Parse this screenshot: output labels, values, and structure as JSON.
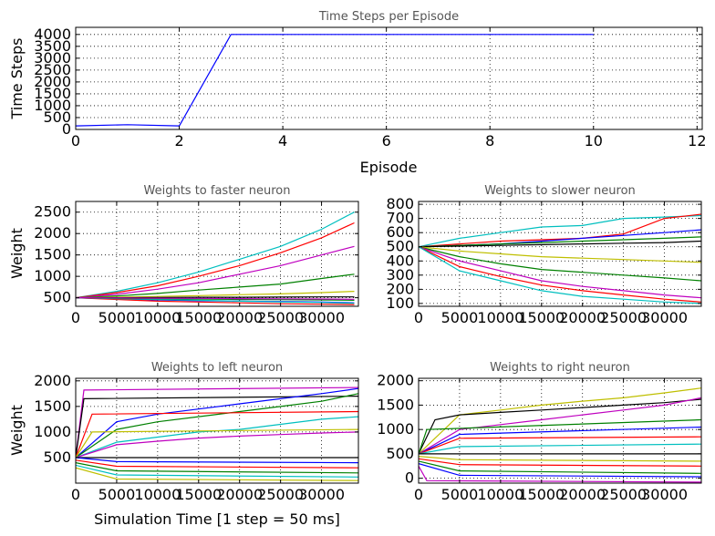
{
  "chart_data": [
    {
      "type": "line",
      "title": "Time Steps per Episode",
      "xlabel": "Episode",
      "ylabel": "Time Steps",
      "xlim": [
        0,
        12.1
      ],
      "ylim": [
        0,
        4300
      ],
      "xticks": [
        0,
        2,
        4,
        6,
        8,
        10,
        12
      ],
      "yticks": [
        0,
        500,
        1000,
        1500,
        2000,
        2500,
        3000,
        3500,
        4000
      ],
      "grid": true,
      "series": [
        {
          "color": "#0000ff",
          "x": [
            0,
            1,
            2,
            3,
            4,
            5,
            6,
            7,
            8,
            9,
            10
          ],
          "y": [
            150,
            200,
            150,
            4000,
            4000,
            4000,
            4000,
            4000,
            4000,
            4000,
            4000
          ]
        }
      ]
    },
    {
      "type": "line",
      "title": "Weights to faster neuron",
      "xlabel": "",
      "ylabel": "Weight",
      "xlim": [
        0,
        34500
      ],
      "ylim": [
        300,
        2750
      ],
      "xticks": [
        0,
        5000,
        10000,
        15000,
        20000,
        25000,
        30000
      ],
      "yticks": [
        500,
        1000,
        1500,
        2000,
        2500
      ],
      "grid": true,
      "series": [
        {
          "color": "#00bfbf",
          "x": [
            0,
            5000,
            10000,
            15000,
            20000,
            25000,
            30000,
            34000
          ],
          "y": [
            500,
            650,
            850,
            1100,
            1400,
            1700,
            2100,
            2500
          ]
        },
        {
          "color": "#ff0000",
          "x": [
            0,
            5000,
            10000,
            15000,
            20000,
            25000,
            30000,
            34000
          ],
          "y": [
            500,
            620,
            780,
            1000,
            1250,
            1550,
            1900,
            2250
          ]
        },
        {
          "color": "#bf00bf",
          "x": [
            0,
            5000,
            10000,
            15000,
            20000,
            25000,
            30000,
            34000
          ],
          "y": [
            500,
            580,
            700,
            850,
            1050,
            1250,
            1500,
            1700
          ]
        },
        {
          "color": "#008000",
          "x": [
            0,
            5000,
            10000,
            15000,
            20000,
            25000,
            30000,
            34000
          ],
          "y": [
            500,
            540,
            600,
            680,
            750,
            820,
            950,
            1050
          ]
        },
        {
          "color": "#bfbf00",
          "x": [
            0,
            5000,
            10000,
            15000,
            20000,
            25000,
            30000,
            34000
          ],
          "y": [
            500,
            510,
            530,
            550,
            570,
            590,
            620,
            650
          ]
        },
        {
          "color": "#000000",
          "x": [
            0,
            5000,
            10000,
            15000,
            20000,
            25000,
            30000,
            34000
          ],
          "y": [
            500,
            500,
            505,
            510,
            510,
            515,
            520,
            520
          ]
        },
        {
          "color": "#0000ff",
          "x": [
            0,
            5000,
            10000,
            15000,
            20000,
            25000,
            30000,
            34000
          ],
          "y": [
            500,
            470,
            450,
            430,
            420,
            410,
            400,
            380
          ]
        },
        {
          "color": "#ff0000",
          "x": [
            0,
            5000,
            10000,
            15000,
            20000,
            25000,
            30000,
            34000
          ],
          "y": [
            500,
            460,
            420,
            400,
            380,
            360,
            350,
            340
          ]
        },
        {
          "color": "#00bfbf",
          "x": [
            0,
            5000,
            10000,
            15000,
            20000,
            25000,
            30000,
            34000
          ],
          "y": [
            500,
            480,
            460,
            440,
            420,
            400,
            390,
            370
          ]
        },
        {
          "color": "#008000",
          "x": [
            0,
            5000,
            10000,
            15000,
            20000,
            25000,
            30000,
            34000
          ],
          "y": [
            500,
            490,
            480,
            470,
            460,
            455,
            450,
            440
          ]
        },
        {
          "color": "#bf00bf",
          "x": [
            0,
            5000,
            10000,
            15000,
            20000,
            25000,
            30000,
            34000
          ],
          "y": [
            500,
            495,
            490,
            485,
            480,
            475,
            470,
            465
          ]
        }
      ]
    },
    {
      "type": "line",
      "title": "Weights to slower neuron",
      "xlabel": "",
      "ylabel": "",
      "xlim": [
        0,
        34500
      ],
      "ylim": [
        80,
        820
      ],
      "xticks": [
        0,
        5000,
        10000,
        15000,
        20000,
        25000,
        30000
      ],
      "yticks": [
        100,
        200,
        300,
        400,
        500,
        600,
        700,
        800
      ],
      "grid": true,
      "series": [
        {
          "color": "#00bfbf",
          "x": [
            0,
            5000,
            10000,
            15000,
            20000,
            25000,
            30000,
            34500
          ],
          "y": [
            500,
            560,
            600,
            640,
            650,
            700,
            710,
            720
          ]
        },
        {
          "color": "#ff0000",
          "x": [
            0,
            5000,
            10000,
            15000,
            20000,
            25000,
            30000,
            34500
          ],
          "y": [
            500,
            520,
            540,
            550,
            560,
            590,
            700,
            730
          ]
        },
        {
          "color": "#0000ff",
          "x": [
            0,
            5000,
            10000,
            15000,
            20000,
            25000,
            30000,
            34500
          ],
          "y": [
            500,
            510,
            520,
            540,
            560,
            580,
            600,
            620
          ]
        },
        {
          "color": "#008000",
          "x": [
            0,
            5000,
            10000,
            15000,
            20000,
            25000,
            30000,
            34500
          ],
          "y": [
            500,
            510,
            520,
            530,
            540,
            550,
            560,
            570
          ]
        },
        {
          "color": "#000000",
          "x": [
            0,
            5000,
            10000,
            15000,
            20000,
            25000,
            30000,
            34500
          ],
          "y": [
            500,
            505,
            510,
            515,
            520,
            525,
            530,
            540
          ]
        },
        {
          "color": "#bfbf00",
          "x": [
            0,
            5000,
            10000,
            15000,
            20000,
            25000,
            30000,
            34500
          ],
          "y": [
            500,
            470,
            450,
            430,
            420,
            410,
            400,
            390
          ]
        },
        {
          "color": "#008000",
          "x": [
            0,
            5000,
            10000,
            15000,
            20000,
            25000,
            30000,
            34500
          ],
          "y": [
            500,
            430,
            380,
            340,
            320,
            300,
            280,
            260
          ]
        },
        {
          "color": "#bf00bf",
          "x": [
            0,
            5000,
            10000,
            15000,
            20000,
            25000,
            30000,
            34500
          ],
          "y": [
            500,
            400,
            330,
            260,
            220,
            190,
            160,
            140
          ]
        },
        {
          "color": "#ff0000",
          "x": [
            0,
            5000,
            10000,
            15000,
            20000,
            25000,
            30000,
            34500
          ],
          "y": [
            500,
            360,
            290,
            230,
            190,
            160,
            130,
            110
          ]
        },
        {
          "color": "#00bfbf",
          "x": [
            0,
            5000,
            10000,
            15000,
            20000,
            25000,
            30000,
            34500
          ],
          "y": [
            500,
            330,
            260,
            190,
            150,
            130,
            110,
            100
          ]
        }
      ]
    },
    {
      "type": "line",
      "title": "Weights to left neuron",
      "xlabel": "Simulation Time [1 step = 50 ms]",
      "ylabel": "Weight",
      "xlim": [
        0,
        34500
      ],
      "ylim": [
        0,
        2050
      ],
      "xticks": [
        0,
        5000,
        10000,
        15000,
        20000,
        25000,
        30000
      ],
      "yticks": [
        500,
        1000,
        1500,
        2000
      ],
      "grid": true,
      "series": [
        {
          "color": "#bf00bf",
          "x": [
            0,
            1000,
            34500
          ],
          "y": [
            500,
            1820,
            1870
          ]
        },
        {
          "color": "#000000",
          "x": [
            0,
            1000,
            34500
          ],
          "y": [
            500,
            1650,
            1700
          ]
        },
        {
          "color": "#0000ff",
          "x": [
            0,
            5000,
            10000,
            15000,
            20000,
            25000,
            30000,
            34500
          ],
          "y": [
            500,
            1200,
            1350,
            1450,
            1550,
            1650,
            1750,
            1850
          ]
        },
        {
          "color": "#008000",
          "x": [
            0,
            5000,
            10000,
            15000,
            20000,
            25000,
            30000,
            34500
          ],
          "y": [
            500,
            1050,
            1200,
            1300,
            1400,
            1500,
            1600,
            1750
          ]
        },
        {
          "color": "#ff0000",
          "x": [
            0,
            2000,
            34500
          ],
          "y": [
            500,
            1350,
            1400
          ]
        },
        {
          "color": "#00bfbf",
          "x": [
            0,
            5000,
            10000,
            15000,
            20000,
            25000,
            30000,
            34500
          ],
          "y": [
            500,
            800,
            900,
            1000,
            1050,
            1150,
            1250,
            1300
          ]
        },
        {
          "color": "#bf00bf",
          "x": [
            0,
            5000,
            10000,
            15000,
            20000,
            25000,
            30000,
            34500
          ],
          "y": [
            500,
            750,
            820,
            880,
            920,
            950,
            980,
            1000
          ]
        },
        {
          "color": "#bfbf00",
          "x": [
            0,
            2000,
            34500
          ],
          "y": [
            500,
            1000,
            1050
          ]
        },
        {
          "color": "#000000",
          "x": [
            0,
            34500
          ],
          "y": [
            500,
            500
          ]
        },
        {
          "color": "#0000ff",
          "x": [
            0,
            5000,
            34500
          ],
          "y": [
            500,
            420,
            400
          ]
        },
        {
          "color": "#ff0000",
          "x": [
            0,
            5000,
            34500
          ],
          "y": [
            450,
            330,
            300
          ]
        },
        {
          "color": "#008000",
          "x": [
            0,
            5000,
            34500
          ],
          "y": [
            400,
            240,
            200
          ]
        },
        {
          "color": "#00bfbf",
          "x": [
            0,
            5000,
            34500
          ],
          "y": [
            350,
            160,
            120
          ]
        },
        {
          "color": "#bfbf00",
          "x": [
            0,
            5000,
            34500
          ],
          "y": [
            300,
            80,
            50
          ]
        }
      ]
    },
    {
      "type": "line",
      "title": "Weights to right neuron",
      "xlabel": "",
      "ylabel": "",
      "xlim": [
        0,
        34500
      ],
      "ylim": [
        -100,
        2050
      ],
      "xticks": [
        0,
        5000,
        10000,
        15000,
        20000,
        25000,
        30000
      ],
      "yticks": [
        0,
        500,
        1000,
        1500,
        2000
      ],
      "grid": true,
      "series": [
        {
          "color": "#bfbf00",
          "x": [
            0,
            5000,
            10000,
            15000,
            20000,
            25000,
            30000,
            34500
          ],
          "y": [
            500,
            1300,
            1400,
            1500,
            1580,
            1650,
            1750,
            1850
          ]
        },
        {
          "color": "#000000",
          "x": [
            0,
            2000,
            5000,
            10000,
            15000,
            20000,
            25000,
            30000,
            34500
          ],
          "y": [
            500,
            1200,
            1300,
            1350,
            1400,
            1450,
            1500,
            1550,
            1620
          ]
        },
        {
          "color": "#bf00bf",
          "x": [
            0,
            5000,
            10000,
            15000,
            20000,
            25000,
            30000,
            34500
          ],
          "y": [
            500,
            1000,
            1100,
            1200,
            1300,
            1400,
            1500,
            1650
          ]
        },
        {
          "color": "#008000",
          "x": [
            0,
            1000,
            34500
          ],
          "y": [
            500,
            1000,
            1200
          ]
        },
        {
          "color": "#0000ff",
          "x": [
            0,
            5000,
            34500
          ],
          "y": [
            500,
            900,
            1050
          ]
        },
        {
          "color": "#ff0000",
          "x": [
            0,
            5000,
            34500
          ],
          "y": [
            500,
            820,
            850
          ]
        },
        {
          "color": "#00bfbf",
          "x": [
            0,
            5000,
            34500
          ],
          "y": [
            500,
            650,
            700
          ]
        },
        {
          "color": "#000000",
          "x": [
            0,
            34500
          ],
          "y": [
            500,
            500
          ]
        },
        {
          "color": "#bfbf00",
          "x": [
            0,
            5000,
            34500
          ],
          "y": [
            450,
            380,
            350
          ]
        },
        {
          "color": "#ff0000",
          "x": [
            0,
            5000,
            34500
          ],
          "y": [
            400,
            280,
            250
          ]
        },
        {
          "color": "#008000",
          "x": [
            0,
            5000,
            34500
          ],
          "y": [
            350,
            150,
            100
          ]
        },
        {
          "color": "#0000ff",
          "x": [
            0,
            5000,
            34500
          ],
          "y": [
            300,
            60,
            30
          ]
        },
        {
          "color": "#bf00bf",
          "x": [
            0,
            1000,
            34500
          ],
          "y": [
            250,
            -50,
            -80
          ]
        }
      ]
    }
  ]
}
